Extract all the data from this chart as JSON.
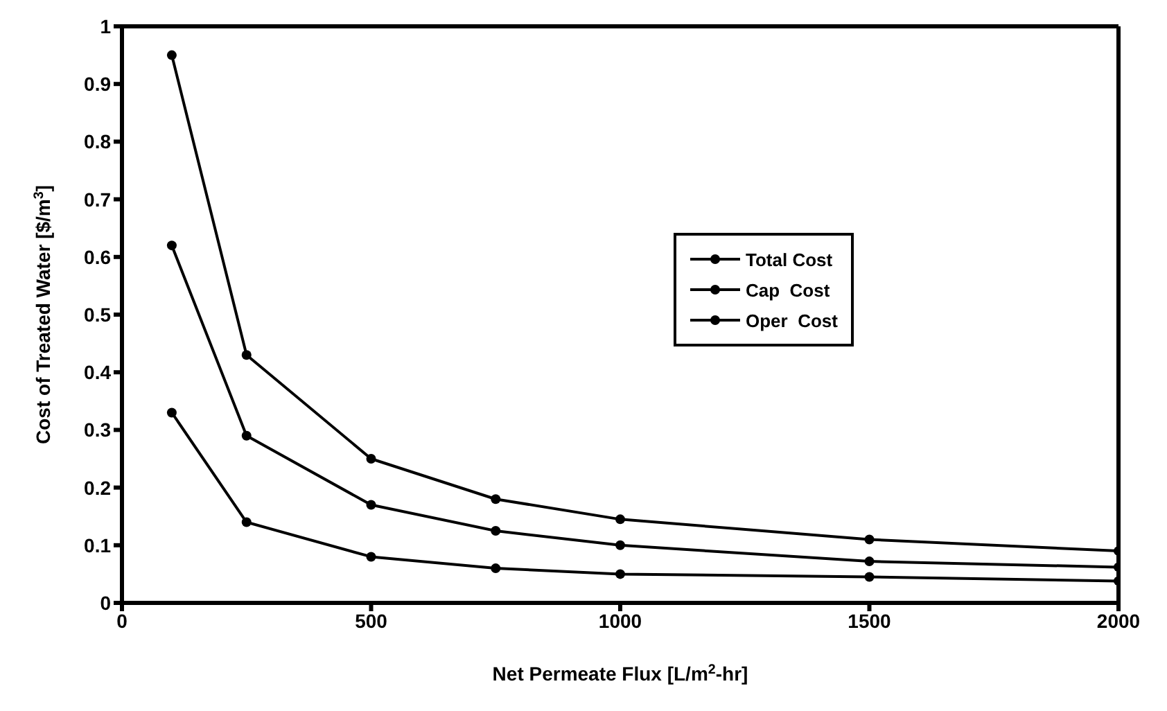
{
  "chart_data": {
    "type": "line",
    "xlabel": "Net Permeate Flux [L/m$^{2}$-hr]",
    "ylabel": "Cost of Treated Water [$/m$^{3}$]",
    "x": [
      100,
      250,
      500,
      750,
      1000,
      1500,
      2000
    ],
    "series": [
      {
        "name": "Total Cost",
        "color": "#000000",
        "values": [
          0.95,
          0.43,
          0.25,
          0.18,
          0.145,
          0.11,
          0.09
        ]
      },
      {
        "name": "Cap  Cost",
        "color": "#000000",
        "values": [
          0.62,
          0.29,
          0.17,
          0.125,
          0.1,
          0.072,
          0.062
        ]
      },
      {
        "name": "Oper  Cost",
        "color": "#000000",
        "values": [
          0.33,
          0.14,
          0.08,
          0.06,
          0.05,
          0.045,
          0.038
        ]
      }
    ],
    "xlim": [
      0,
      2000
    ],
    "xticks": [
      0,
      500,
      1000,
      1500,
      2000
    ],
    "ylim": [
      0,
      1
    ],
    "yticks": [
      0,
      0.1,
      0.2,
      0.3,
      0.4,
      0.5,
      0.6,
      0.7,
      0.8,
      0.9,
      1
    ],
    "grid": false,
    "legend": "right",
    "marker": "circle",
    "line_style": "solid"
  }
}
